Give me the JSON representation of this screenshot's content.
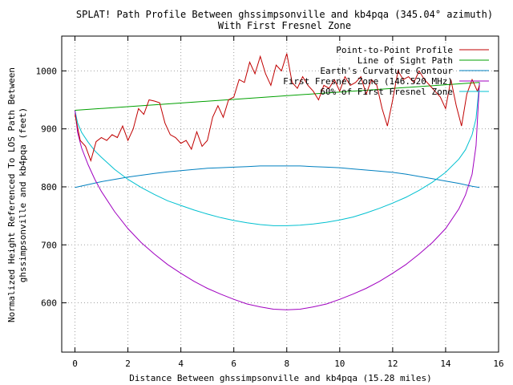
{
  "chart_data": {
    "type": "line",
    "title_line1": "SPLAT! Path Profile Between ghssimpsonville and kb4pqa (345.04° azimuth)",
    "title_line2": "With First Fresnel Zone",
    "xlabel": "Distance Between ghssimpsonville and kb4pqa (15.28 miles)",
    "ylabel_line1": "Normalized Height Referenced To LOS Path Between",
    "ylabel_line2": "ghssimpsonville and kb4pqa (feet)",
    "xlim": [
      -0.5,
      16
    ],
    "ylim": [
      515,
      1060
    ],
    "x_ticks": [
      0,
      2,
      4,
      6,
      8,
      10,
      12,
      14,
      16
    ],
    "y_ticks": [
      600,
      700,
      800,
      900,
      1000
    ],
    "grid": true,
    "legend_position": "top-right",
    "series": [
      {
        "name": "Point-to-Point Profile",
        "color": "#c00000",
        "x": [
          0,
          0.2,
          0.4,
          0.6,
          0.8,
          1.0,
          1.2,
          1.4,
          1.6,
          1.8,
          2.0,
          2.2,
          2.4,
          2.6,
          2.8,
          3.0,
          3.2,
          3.4,
          3.6,
          3.8,
          4.0,
          4.2,
          4.4,
          4.6,
          4.8,
          5.0,
          5.2,
          5.4,
          5.6,
          5.8,
          6.0,
          6.2,
          6.4,
          6.6,
          6.8,
          7.0,
          7.2,
          7.4,
          7.6,
          7.8,
          8.0,
          8.2,
          8.4,
          8.6,
          8.8,
          9.0,
          9.2,
          9.4,
          9.6,
          9.8,
          10.0,
          10.2,
          10.4,
          10.6,
          10.8,
          11.0,
          11.2,
          11.4,
          11.6,
          11.8,
          12.0,
          12.2,
          12.4,
          12.6,
          12.8,
          13.0,
          13.2,
          13.4,
          13.6,
          13.8,
          14.0,
          14.2,
          14.4,
          14.6,
          14.8,
          15.0,
          15.2,
          15.28
        ],
        "y": [
          925,
          880,
          870,
          845,
          878,
          885,
          880,
          890,
          885,
          905,
          880,
          900,
          935,
          925,
          950,
          948,
          945,
          910,
          890,
          885,
          875,
          880,
          865,
          895,
          870,
          880,
          920,
          940,
          920,
          950,
          955,
          985,
          980,
          1015,
          995,
          1025,
          995,
          975,
          1010,
          1000,
          1030,
          980,
          970,
          990,
          975,
          965,
          950,
          975,
          970,
          985,
          965,
          990,
          975,
          980,
          990,
          960,
          985,
          975,
          935,
          905,
          950,
          1000,
          985,
          990,
          980,
          1000,
          985,
          975,
          965,
          955,
          935,
          985,
          940,
          905,
          960,
          985,
          965,
          975
        ]
      },
      {
        "name": "Line of Sight Path",
        "color": "#00a000",
        "x": [
          0,
          15.28
        ],
        "y": [
          932,
          980
        ]
      },
      {
        "name": "Earth's Curvature Contour",
        "color": "#0080c0",
        "x": [
          0,
          0.5,
          1,
          1.5,
          2,
          2.5,
          3,
          3.5,
          4,
          4.5,
          5,
          5.5,
          6,
          6.5,
          7,
          7.5,
          8,
          8.5,
          9,
          9.5,
          10,
          10.5,
          11,
          11.5,
          12,
          12.5,
          13,
          13.5,
          14,
          14.5,
          15,
          15.28
        ],
        "y": [
          799,
          804,
          809,
          813,
          817,
          820,
          823,
          826,
          828,
          830,
          832,
          833,
          834,
          835,
          836,
          836,
          836,
          836,
          835,
          834,
          833,
          831,
          829,
          827,
          825,
          822,
          818,
          814,
          810,
          806,
          801,
          799
        ]
      },
      {
        "name": "First Fresnel Zone (146.520 MHz)",
        "color": "#a000c0",
        "x": [
          0,
          0.1,
          0.25,
          0.5,
          0.75,
          1,
          1.5,
          2,
          2.5,
          3,
          3.5,
          4,
          4.5,
          5,
          5.5,
          6,
          6.5,
          7,
          7.5,
          8,
          8.5,
          9,
          9.5,
          10,
          10.5,
          11,
          11.5,
          12,
          12.5,
          13,
          13.5,
          14,
          14.5,
          14.75,
          15,
          15.15,
          15.28
        ],
        "y": [
          932,
          894,
          867,
          838,
          813,
          792,
          757,
          728,
          704,
          684,
          666,
          651,
          637,
          625,
          615,
          606,
          598,
          593,
          589,
          588,
          589,
          593,
          598,
          606,
          615,
          625,
          637,
          651,
          666,
          684,
          704,
          728,
          762,
          786,
          822,
          871,
          980
        ]
      },
      {
        "name": "60% of First Fresnel Zone",
        "color": "#00c0d0",
        "x": [
          0,
          0.1,
          0.25,
          0.5,
          0.75,
          1,
          1.5,
          2,
          2.5,
          3,
          3.5,
          4,
          4.5,
          5,
          5.5,
          6,
          6.5,
          7,
          7.5,
          8,
          8.5,
          9,
          9.5,
          10,
          10.5,
          11,
          11.5,
          12,
          12.5,
          13,
          13.5,
          14,
          14.5,
          14.75,
          15,
          15.15,
          15.28
        ],
        "y": [
          932,
          910,
          894,
          877,
          862,
          851,
          830,
          813,
          799,
          787,
          776,
          768,
          760,
          753,
          747,
          742,
          738,
          735,
          733,
          733,
          734,
          736,
          739,
          743,
          748,
          755,
          763,
          772,
          782,
          794,
          808,
          825,
          848,
          864,
          890,
          918,
          980
        ]
      }
    ]
  }
}
